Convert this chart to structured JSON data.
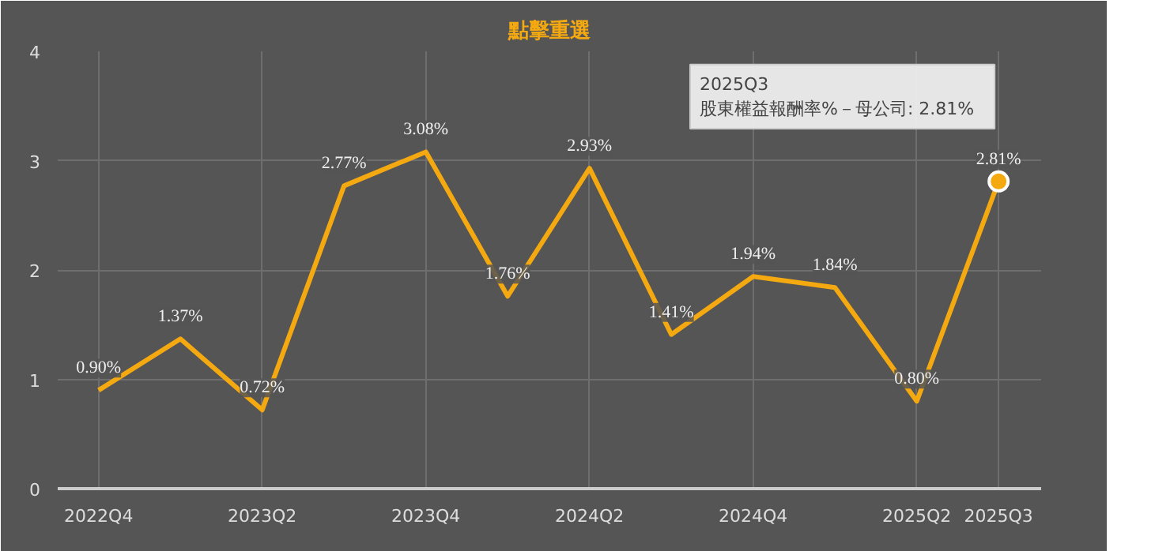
{
  "chart_data": {
    "type": "line",
    "title": "點擊重選",
    "categories": [
      "2022Q4",
      null,
      "2023Q2",
      null,
      "2023Q4",
      null,
      "2024Q2",
      null,
      "2024Q4",
      null,
      "2025Q2",
      "2025Q3"
    ],
    "series": [
      {
        "color": "#f5a911",
        "values": [
          0.9,
          1.37,
          0.72,
          2.77,
          3.08,
          1.76,
          2.93,
          1.41,
          1.94,
          1.84,
          0.8,
          2.81
        ],
        "value_labels": [
          "0.90%",
          "1.37%",
          "0.72%",
          "2.77%",
          "3.08%",
          "1.76%",
          "2.93%",
          "1.41%",
          "1.94%",
          "1.84%",
          "0.80%",
          "2.81%"
        ]
      }
    ],
    "annotations": [
      "2025Q3",
      "股東權益報酬率%－母公司: 2.81%"
    ],
    "ylim": [
      0,
      4
    ],
    "yticks": [
      0,
      1,
      2,
      3,
      4
    ],
    "grid": true,
    "marker": "none",
    "line_style": "solid"
  }
}
